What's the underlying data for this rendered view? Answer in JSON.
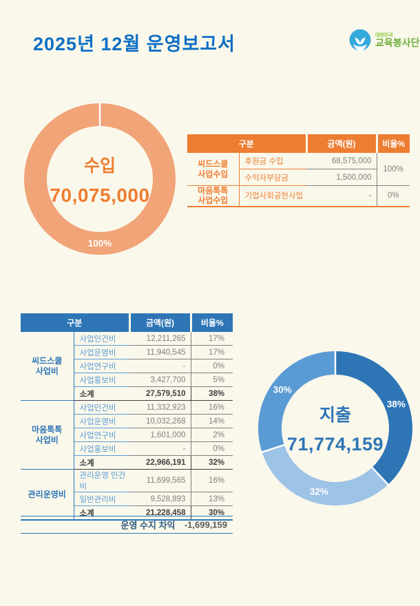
{
  "header": {
    "title": "2025년 12월 운영보고서",
    "logo": {
      "line1": "대한민국",
      "line2": "교육봉사단",
      "circle_color": "#35A8DC",
      "text_color": "#6FAE3E"
    }
  },
  "colors": {
    "background": "#FAF8EB",
    "title_blue": "#0F6FC6",
    "orange_accent": "#ED7D31",
    "orange_ring": "#F0A478",
    "blue_accent": "#2E75B6",
    "blue_mid": "#5B9BD5",
    "blue_light": "#9DC3E6",
    "value_gray": "#7F7F7F"
  },
  "chart_data": [
    {
      "id": "income-donut",
      "type": "pie",
      "title": "수입",
      "center_label": "수입",
      "center_value": "70,075,000",
      "total": 70075000,
      "values": [
        100
      ],
      "labels": [
        "100%"
      ],
      "colors": [
        "#F0A478"
      ],
      "legend_position": "none"
    },
    {
      "id": "expense-donut",
      "type": "pie",
      "title": "지출",
      "center_label": "지출",
      "center_value": "71,774,159",
      "total": 71774159,
      "values": [
        38,
        32,
        30
      ],
      "labels": [
        "38%",
        "32%",
        "30%"
      ],
      "colors": [
        "#2E75B6",
        "#9DC3E6",
        "#5B9BD5"
      ],
      "legend_position": "none"
    }
  ],
  "income": {
    "table": {
      "headers": [
        "구분",
        "금액(원)",
        "비율%"
      ],
      "groups": [
        {
          "label": "씨드스쿨\n사업수입",
          "ratio": "100%",
          "rows": [
            {
              "item": "후원금 수입",
              "amount": "68,575,000"
            },
            {
              "item": "수익자부담금",
              "amount": "1,500,000"
            }
          ]
        },
        {
          "label": "마음톡톡\n사업수입",
          "ratio": "0%",
          "rows": [
            {
              "item": "기업사회공헌사업",
              "amount": "-"
            }
          ]
        }
      ]
    }
  },
  "expense": {
    "table": {
      "headers": [
        "구분",
        "금액(원)",
        "비율%"
      ],
      "groups": [
        {
          "label": "씨드스쿨\n사업비",
          "rows": [
            {
              "item": "사업인건비",
              "amount": "12,211,265",
              "ratio": "17%"
            },
            {
              "item": "사업운영비",
              "amount": "11,940,545",
              "ratio": "17%"
            },
            {
              "item": "사업연구비",
              "amount": "-",
              "ratio": "0%"
            },
            {
              "item": "사업홍보비",
              "amount": "3,427,700",
              "ratio": "5%"
            },
            {
              "item": "소계",
              "amount": "27,579,510",
              "ratio": "38%",
              "subtotal": true
            }
          ]
        },
        {
          "label": "마음톡톡\n사업비",
          "rows": [
            {
              "item": "사업인건비",
              "amount": "11,332,923",
              "ratio": "16%"
            },
            {
              "item": "사업운영비",
              "amount": "10,032,268",
              "ratio": "14%"
            },
            {
              "item": "사업연구비",
              "amount": "1,601,000",
              "ratio": "2%"
            },
            {
              "item": "사업홍보비",
              "amount": "-",
              "ratio": "0%"
            },
            {
              "item": "소계",
              "amount": "22,966,191",
              "ratio": "32%",
              "subtotal": true
            }
          ]
        },
        {
          "label": "관리운영비",
          "rows": [
            {
              "item": "관리운영 인건비",
              "amount": "11,699,565",
              "ratio": "16%"
            },
            {
              "item": "일반관리비",
              "amount": "9,528,893",
              "ratio": "13%"
            },
            {
              "item": "소계",
              "amount": "21,228,458",
              "ratio": "30%",
              "subtotal": true
            }
          ]
        }
      ]
    },
    "net": {
      "label": "운영 수지 차익",
      "value": "-1,699,159"
    }
  }
}
